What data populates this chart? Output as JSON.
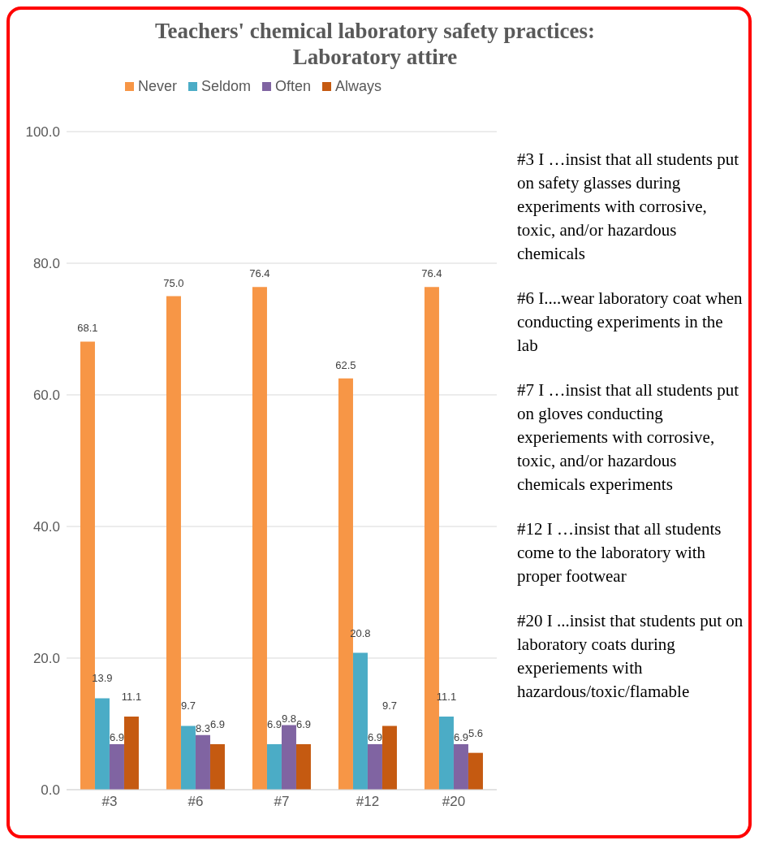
{
  "chart_data": {
    "type": "bar",
    "title": "Teachers' chemical  laboratory safety practices: Laboratory attire",
    "categories": [
      "#3",
      "#6",
      "#7",
      "#12",
      "#20"
    ],
    "series": [
      {
        "name": "Never",
        "color": "#f79646",
        "values": [
          68.1,
          75.0,
          76.4,
          62.5,
          76.4
        ],
        "value_labels": [
          "68.1",
          "75.0",
          "76.4",
          "62.5",
          "76.4"
        ]
      },
      {
        "name": "Seldom",
        "color": "#4bacc6",
        "values": [
          13.9,
          9.7,
          6.9,
          20.8,
          11.1
        ],
        "value_labels": [
          "13.9",
          "9.7",
          "6.9",
          "20.8",
          "11.1"
        ]
      },
      {
        "name": "Often",
        "color": "#8064a2",
        "values": [
          6.9,
          8.3,
          9.8,
          6.9,
          6.9
        ],
        "value_labels": [
          "6.9",
          "8.3",
          "9.8",
          "6.9",
          "6.9"
        ]
      },
      {
        "name": "Always",
        "color": "#c55a11",
        "values": [
          11.1,
          6.9,
          6.9,
          9.7,
          5.6
        ],
        "value_labels": [
          "11.1",
          "6.9",
          "6.9",
          "9.7",
          "5.6"
        ]
      }
    ],
    "ylim": [
      0,
      100
    ],
    "yticks": [
      {
        "value": 0,
        "label": "0.0"
      },
      {
        "value": 20,
        "label": "20.0"
      },
      {
        "value": 40,
        "label": "40.0"
      },
      {
        "value": 60,
        "label": "60.0"
      },
      {
        "value": 80,
        "label": "80.0"
      },
      {
        "value": 100,
        "label": "100.0"
      }
    ],
    "grid": "y",
    "legend": "top",
    "annotations": [
      "#3 I …insist that all students put on safety glasses during experiments with corrosive, toxic, and/or hazardous chemicals",
      "#6  I....wear laboratory coat when conducting experiments in the lab",
      "#7 I …insist that all students put on gloves conducting experiements with corrosive, toxic, and/or hazardous chemicals experiments",
      "#12   I …insist that all students come to the laboratory with proper footwear",
      "#20 I ...insist that students put on laboratory coats during experiements with hazardous/toxic/flamable"
    ]
  }
}
